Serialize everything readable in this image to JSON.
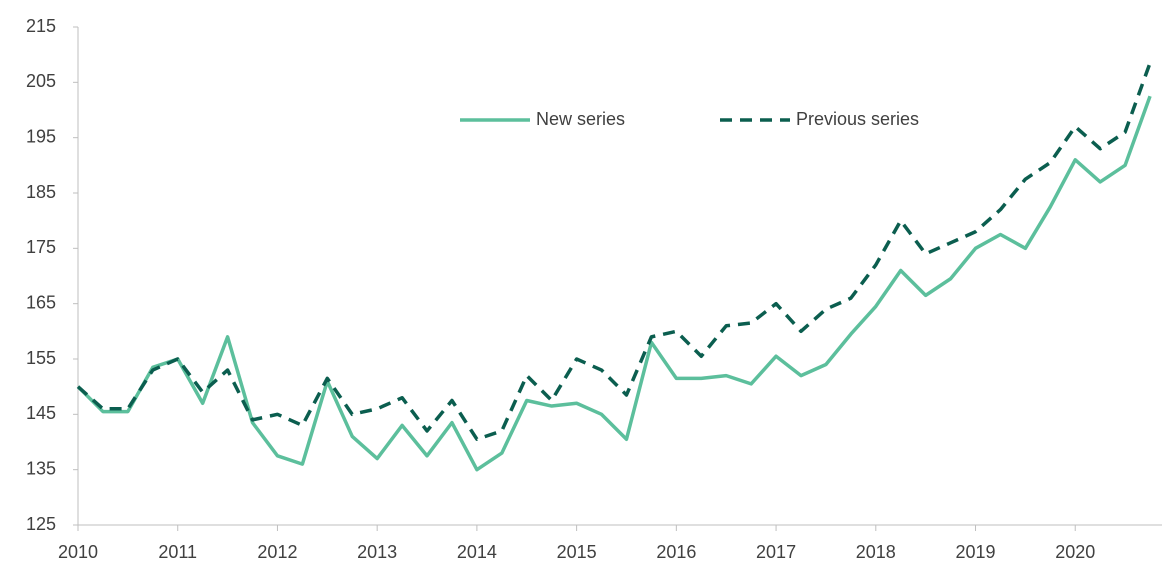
{
  "chart_data": {
    "type": "line",
    "x": [
      2010,
      2010.25,
      2010.5,
      2010.75,
      2011,
      2011.25,
      2011.5,
      2011.75,
      2012,
      2012.25,
      2012.5,
      2012.75,
      2013,
      2013.25,
      2013.5,
      2013.75,
      2014,
      2014.25,
      2014.5,
      2014.75,
      2015,
      2015.25,
      2015.5,
      2015.75,
      2016,
      2016.25,
      2016.5,
      2016.75,
      2017,
      2017.25,
      2017.5,
      2017.75,
      2018,
      2018.25,
      2018.5,
      2018.75,
      2019,
      2019.25,
      2019.5,
      2019.75,
      2020,
      2020.25,
      2020.5,
      2020.75
    ],
    "series": [
      {
        "name": "New series",
        "color": "#5cbf9c",
        "dash": false,
        "values": [
          150,
          145.5,
          145.5,
          153.5,
          155,
          147,
          159,
          143.5,
          137.5,
          136,
          151,
          141,
          137,
          143,
          137.5,
          143.5,
          135,
          138,
          147.5,
          146.5,
          147,
          145,
          140.5,
          158,
          151.5,
          151.5,
          152,
          150.5,
          155.5,
          152,
          154,
          159.5,
          164.5,
          171,
          166.5,
          169.5,
          175,
          177.5,
          175,
          182.5,
          191,
          187,
          190,
          202.5
        ]
      },
      {
        "name": "Previous series",
        "color": "#0b5e4f",
        "dash": true,
        "values": [
          150,
          146,
          146,
          153,
          155,
          149,
          153,
          144,
          145,
          143,
          151.5,
          145,
          146,
          148,
          142,
          147.5,
          140.5,
          142,
          152,
          147.5,
          155,
          153,
          148.5,
          159,
          160,
          155.5,
          161,
          161.5,
          165,
          160,
          164,
          166,
          172,
          180,
          174,
          176,
          178,
          182,
          187.5,
          190.5,
          197,
          193,
          196,
          208.5
        ]
      }
    ],
    "xlim": [
      2010,
      2020.87
    ],
    "xticks": [
      2010,
      2011,
      2012,
      2013,
      2014,
      2015,
      2016,
      2017,
      2018,
      2019,
      2020
    ],
    "ylim": [
      125,
      215
    ],
    "yticks": [
      125,
      135,
      145,
      155,
      165,
      175,
      185,
      195,
      205,
      215
    ],
    "grid": false,
    "legend": "top"
  }
}
